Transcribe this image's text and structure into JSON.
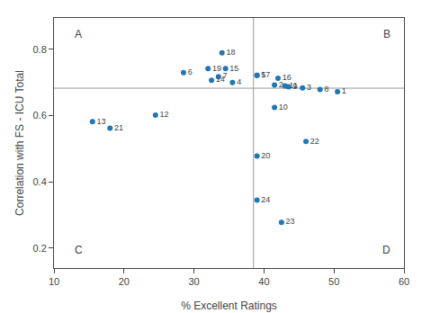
{
  "chart_data": {
    "type": "scatter",
    "x": [
      50.5,
      41.5,
      45.5,
      35.5,
      39.0,
      28.5,
      33.5,
      48.0,
      43.5,
      41.5,
      43.0,
      24.5,
      15.5,
      32.5,
      34.5,
      42.0,
      39.0,
      34.0,
      32.0,
      39.0,
      18.0,
      46.0,
      42.5,
      39.0
    ],
    "values": [
      0.672,
      0.693,
      0.684,
      0.7,
      0.722,
      0.73,
      0.718,
      0.679,
      0.687,
      0.625,
      0.69,
      0.602,
      0.582,
      0.707,
      0.742,
      0.713,
      0.722,
      0.79,
      0.742,
      0.478,
      0.562,
      0.522,
      0.278,
      0.345
    ],
    "labels": [
      "1",
      "2",
      "3",
      "4",
      "5",
      "6",
      "7",
      "8",
      "9",
      "10",
      "11",
      "12",
      "13",
      "14",
      "15",
      "16",
      "17",
      "18",
      "19",
      "20",
      "21",
      "22",
      "23",
      "24"
    ],
    "hline": 0.683,
    "vline": 38.5,
    "annotations": [
      {
        "text": "A",
        "x": 13.5,
        "y": 0.845
      },
      {
        "text": "B",
        "x": 57.5,
        "y": 0.845
      },
      {
        "text": "C",
        "x": 13.5,
        "y": 0.195
      },
      {
        "text": "D",
        "x": 57.5,
        "y": 0.195
      }
    ],
    "xlabel": "% Excellent Ratings",
    "ylabel": "Correlation with FS - ICU Total",
    "xlim": [
      10,
      60
    ],
    "ylim": [
      0.14,
      0.895
    ],
    "xticks": [
      10,
      20,
      30,
      40,
      50,
      60
    ],
    "yticks": [
      0.2,
      0.4,
      0.6,
      0.8
    ],
    "grid": false
  }
}
